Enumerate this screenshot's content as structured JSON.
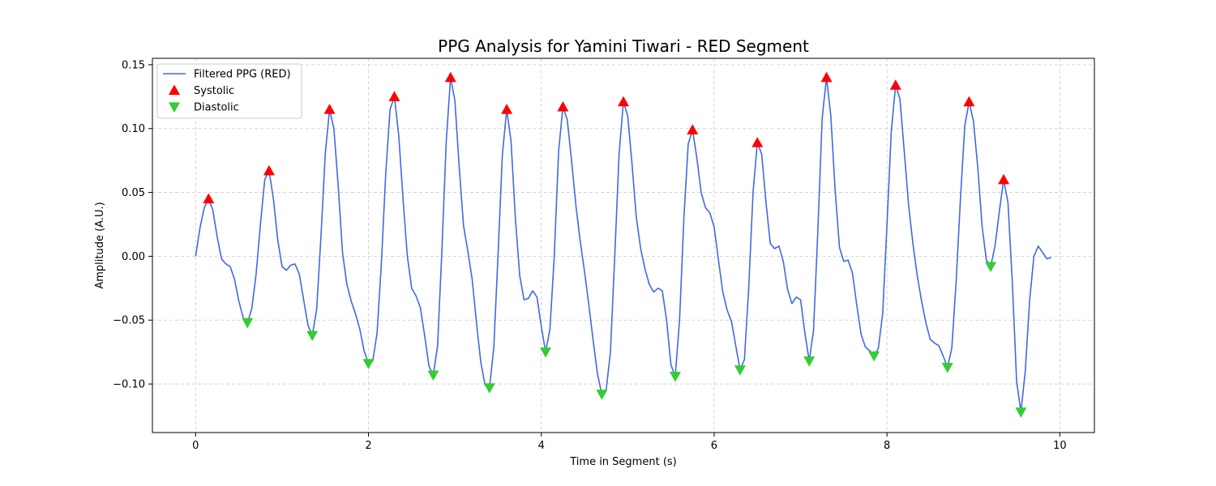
{
  "chart_data": {
    "type": "line",
    "title": "PPG Analysis for Yamini Tiwari - RED Segment",
    "xlabel": "Time in Segment (s)",
    "ylabel": "Amplitude (A.U.)",
    "xlim": [
      -0.5,
      10.4
    ],
    "ylim": [
      -0.138,
      0.155
    ],
    "xticks": [
      0,
      2,
      4,
      6,
      8,
      10
    ],
    "xtick_labels": [
      "0",
      "2",
      "4",
      "6",
      "8",
      "10"
    ],
    "yticks": [
      -0.1,
      -0.05,
      0.0,
      0.05,
      0.1,
      0.15
    ],
    "ytick_labels": [
      "−0.10",
      "−0.05",
      "0.00",
      "0.05",
      "0.10",
      "0.15"
    ],
    "grid": true,
    "legend_position": "top-left",
    "series": [
      {
        "name": "Filtered PPG (RED)",
        "kind": "line",
        "color": "#4169e1",
        "points": [
          [
            0.0,
            0.0
          ],
          [
            0.05,
            0.022
          ],
          [
            0.1,
            0.038
          ],
          [
            0.15,
            0.045
          ],
          [
            0.2,
            0.036
          ],
          [
            0.25,
            0.015
          ],
          [
            0.3,
            -0.002
          ],
          [
            0.35,
            -0.006
          ],
          [
            0.4,
            -0.008
          ],
          [
            0.45,
            -0.018
          ],
          [
            0.5,
            -0.035
          ],
          [
            0.55,
            -0.048
          ],
          [
            0.6,
            -0.052
          ],
          [
            0.65,
            -0.041
          ],
          [
            0.7,
            -0.014
          ],
          [
            0.75,
            0.025
          ],
          [
            0.8,
            0.06
          ],
          [
            0.85,
            0.067
          ],
          [
            0.9,
            0.045
          ],
          [
            0.95,
            0.013
          ],
          [
            1.0,
            -0.008
          ],
          [
            1.05,
            -0.011
          ],
          [
            1.1,
            -0.007
          ],
          [
            1.15,
            -0.006
          ],
          [
            1.2,
            -0.014
          ],
          [
            1.25,
            -0.034
          ],
          [
            1.3,
            -0.054
          ],
          [
            1.35,
            -0.062
          ],
          [
            1.4,
            -0.042
          ],
          [
            1.45,
            0.015
          ],
          [
            1.5,
            0.08
          ],
          [
            1.55,
            0.115
          ],
          [
            1.6,
            0.1
          ],
          [
            1.65,
            0.055
          ],
          [
            1.7,
            0.003
          ],
          [
            1.75,
            -0.022
          ],
          [
            1.8,
            -0.035
          ],
          [
            1.85,
            -0.045
          ],
          [
            1.9,
            -0.057
          ],
          [
            1.95,
            -0.074
          ],
          [
            2.0,
            -0.084
          ],
          [
            2.05,
            -0.082
          ],
          [
            2.1,
            -0.06
          ],
          [
            2.15,
            -0.005
          ],
          [
            2.2,
            0.065
          ],
          [
            2.25,
            0.115
          ],
          [
            2.3,
            0.125
          ],
          [
            2.35,
            0.095
          ],
          [
            2.4,
            0.045
          ],
          [
            2.45,
            0.0
          ],
          [
            2.5,
            -0.025
          ],
          [
            2.55,
            -0.031
          ],
          [
            2.6,
            -0.04
          ],
          [
            2.65,
            -0.062
          ],
          [
            2.7,
            -0.086
          ],
          [
            2.75,
            -0.093
          ],
          [
            2.8,
            -0.07
          ],
          [
            2.85,
            0.005
          ],
          [
            2.9,
            0.09
          ],
          [
            2.95,
            0.14
          ],
          [
            3.0,
            0.122
          ],
          [
            3.05,
            0.07
          ],
          [
            3.1,
            0.024
          ],
          [
            3.15,
            0.004
          ],
          [
            3.2,
            -0.018
          ],
          [
            3.25,
            -0.052
          ],
          [
            3.3,
            -0.083
          ],
          [
            3.35,
            -0.101
          ],
          [
            3.4,
            -0.103
          ],
          [
            3.45,
            -0.072
          ],
          [
            3.5,
            0.002
          ],
          [
            3.55,
            0.08
          ],
          [
            3.6,
            0.115
          ],
          [
            3.65,
            0.09
          ],
          [
            3.7,
            0.03
          ],
          [
            3.75,
            -0.015
          ],
          [
            3.8,
            -0.034
          ],
          [
            3.85,
            -0.033
          ],
          [
            3.9,
            -0.027
          ],
          [
            3.95,
            -0.032
          ],
          [
            4.0,
            -0.055
          ],
          [
            4.05,
            -0.075
          ],
          [
            4.1,
            -0.057
          ],
          [
            4.15,
            0.0
          ],
          [
            4.2,
            0.082
          ],
          [
            4.25,
            0.117
          ],
          [
            4.3,
            0.107
          ],
          [
            4.35,
            0.075
          ],
          [
            4.4,
            0.04
          ],
          [
            4.45,
            0.012
          ],
          [
            4.5,
            -0.012
          ],
          [
            4.55,
            -0.038
          ],
          [
            4.6,
            -0.066
          ],
          [
            4.65,
            -0.092
          ],
          [
            4.7,
            -0.108
          ],
          [
            4.75,
            -0.105
          ],
          [
            4.8,
            -0.075
          ],
          [
            4.85,
            0.0
          ],
          [
            4.9,
            0.08
          ],
          [
            4.95,
            0.121
          ],
          [
            5.0,
            0.11
          ],
          [
            5.05,
            0.072
          ],
          [
            5.1,
            0.03
          ],
          [
            5.15,
            0.006
          ],
          [
            5.2,
            -0.01
          ],
          [
            5.25,
            -0.022
          ],
          [
            5.3,
            -0.028
          ],
          [
            5.35,
            -0.025
          ],
          [
            5.4,
            -0.027
          ],
          [
            5.45,
            -0.05
          ],
          [
            5.5,
            -0.085
          ],
          [
            5.55,
            -0.094
          ],
          [
            5.6,
            -0.05
          ],
          [
            5.65,
            0.03
          ],
          [
            5.7,
            0.088
          ],
          [
            5.75,
            0.099
          ],
          [
            5.8,
            0.077
          ],
          [
            5.85,
            0.05
          ],
          [
            5.9,
            0.038
          ],
          [
            5.95,
            0.034
          ],
          [
            6.0,
            0.023
          ],
          [
            6.05,
            -0.003
          ],
          [
            6.1,
            -0.028
          ],
          [
            6.15,
            -0.042
          ],
          [
            6.2,
            -0.051
          ],
          [
            6.25,
            -0.07
          ],
          [
            6.3,
            -0.089
          ],
          [
            6.35,
            -0.081
          ],
          [
            6.4,
            -0.025
          ],
          [
            6.45,
            0.05
          ],
          [
            6.5,
            0.089
          ],
          [
            6.55,
            0.08
          ],
          [
            6.6,
            0.042
          ],
          [
            6.65,
            0.01
          ],
          [
            6.7,
            0.006
          ],
          [
            6.75,
            0.008
          ],
          [
            6.8,
            -0.004
          ],
          [
            6.85,
            -0.026
          ],
          [
            6.9,
            -0.037
          ],
          [
            6.95,
            -0.032
          ],
          [
            7.0,
            -0.034
          ],
          [
            7.05,
            -0.06
          ],
          [
            7.1,
            -0.082
          ],
          [
            7.15,
            -0.058
          ],
          [
            7.2,
            0.02
          ],
          [
            7.25,
            0.108
          ],
          [
            7.3,
            0.14
          ],
          [
            7.35,
            0.11
          ],
          [
            7.4,
            0.052
          ],
          [
            7.45,
            0.007
          ],
          [
            7.5,
            -0.004
          ],
          [
            7.55,
            -0.003
          ],
          [
            7.6,
            -0.013
          ],
          [
            7.65,
            -0.038
          ],
          [
            7.7,
            -0.061
          ],
          [
            7.75,
            -0.071
          ],
          [
            7.8,
            -0.074
          ],
          [
            7.85,
            -0.078
          ],
          [
            7.9,
            -0.072
          ],
          [
            7.95,
            -0.045
          ],
          [
            8.0,
            0.025
          ],
          [
            8.05,
            0.098
          ],
          [
            8.1,
            0.134
          ],
          [
            8.15,
            0.123
          ],
          [
            8.2,
            0.082
          ],
          [
            8.25,
            0.04
          ],
          [
            8.3,
            0.01
          ],
          [
            8.35,
            -0.015
          ],
          [
            8.4,
            -0.035
          ],
          [
            8.45,
            -0.052
          ],
          [
            8.5,
            -0.065
          ],
          [
            8.55,
            -0.068
          ],
          [
            8.6,
            -0.07
          ],
          [
            8.65,
            -0.078
          ],
          [
            8.7,
            -0.087
          ],
          [
            8.75,
            -0.072
          ],
          [
            8.8,
            -0.02
          ],
          [
            8.85,
            0.045
          ],
          [
            8.9,
            0.102
          ],
          [
            8.95,
            0.121
          ],
          [
            9.0,
            0.106
          ],
          [
            9.05,
            0.07
          ],
          [
            9.1,
            0.024
          ],
          [
            9.15,
            -0.003
          ],
          [
            9.2,
            -0.008
          ],
          [
            9.25,
            0.008
          ],
          [
            9.3,
            0.035
          ],
          [
            9.35,
            0.06
          ],
          [
            9.4,
            0.042
          ],
          [
            9.45,
            -0.02
          ],
          [
            9.5,
            -0.098
          ],
          [
            9.55,
            -0.122
          ],
          [
            9.6,
            -0.09
          ],
          [
            9.65,
            -0.035
          ],
          [
            9.7,
            0.0
          ],
          [
            9.75,
            0.008
          ],
          [
            9.8,
            0.003
          ],
          [
            9.85,
            -0.002
          ],
          [
            9.9,
            -0.001
          ]
        ]
      },
      {
        "name": "Systolic",
        "kind": "marker",
        "marker": "triangle-up",
        "color": "#ff0000",
        "points": [
          [
            0.15,
            0.045
          ],
          [
            0.85,
            0.067
          ],
          [
            1.55,
            0.115
          ],
          [
            2.3,
            0.125
          ],
          [
            2.95,
            0.14
          ],
          [
            3.6,
            0.115
          ],
          [
            4.25,
            0.117
          ],
          [
            4.95,
            0.121
          ],
          [
            5.75,
            0.099
          ],
          [
            6.5,
            0.089
          ],
          [
            7.3,
            0.14
          ],
          [
            8.1,
            0.134
          ],
          [
            8.95,
            0.121
          ],
          [
            9.35,
            0.06
          ]
        ]
      },
      {
        "name": "Diastolic",
        "kind": "marker",
        "marker": "triangle-down",
        "color": "#32cd32",
        "points": [
          [
            0.6,
            -0.052
          ],
          [
            1.35,
            -0.062
          ],
          [
            2.0,
            -0.084
          ],
          [
            2.75,
            -0.093
          ],
          [
            3.4,
            -0.103
          ],
          [
            4.05,
            -0.075
          ],
          [
            4.7,
            -0.108
          ],
          [
            5.55,
            -0.094
          ],
          [
            6.3,
            -0.089
          ],
          [
            7.1,
            -0.082
          ],
          [
            7.85,
            -0.078
          ],
          [
            8.7,
            -0.087
          ],
          [
            9.2,
            -0.008
          ],
          [
            9.55,
            -0.122
          ]
        ]
      }
    ]
  }
}
